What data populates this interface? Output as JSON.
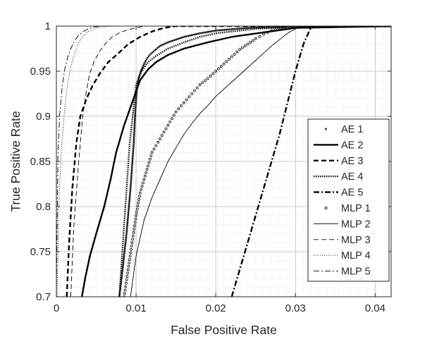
{
  "chart_data": {
    "type": "line",
    "xlabel": "False Positive Rate",
    "ylabel": "True Positive Rate",
    "xlim": [
      0,
      0.042
    ],
    "ylim": [
      0.7,
      1.0
    ],
    "grid": "on (major + minor dotted)",
    "legend_position": "right",
    "xticks": [
      0,
      0.01,
      0.02,
      0.03,
      0.04
    ],
    "xtick_labels": [
      "0",
      "0.01",
      "0.02",
      "0.03",
      "0.04"
    ],
    "yticks": [
      0.7,
      0.75,
      0.8,
      0.85,
      0.9,
      0.95,
      1.0
    ],
    "ytick_labels": [
      "0.7",
      "0.75",
      "0.8",
      "0.85",
      "0.9",
      "0.95",
      "1"
    ],
    "series": [
      {
        "name": "AE 1",
        "style": "x-marker",
        "color": "#000000",
        "x": [
          0.0079,
          0.0083,
          0.0088,
          0.0093,
          0.0097,
          0.0099,
          0.0101,
          0.0103,
          0.0106,
          0.011,
          0.0113,
          0.0117,
          0.0122,
          0.013,
          0.014,
          0.015,
          0.016,
          0.018,
          0.02,
          0.024,
          0.028,
          0.03,
          0.042
        ],
        "y": [
          0.7,
          0.73,
          0.77,
          0.82,
          0.87,
          0.905,
          0.93,
          0.942,
          0.95,
          0.958,
          0.963,
          0.968,
          0.972,
          0.978,
          0.982,
          0.985,
          0.988,
          0.992,
          0.995,
          0.998,
          0.999,
          1.0,
          1.0
        ]
      },
      {
        "name": "AE 2",
        "style": "solid-thick",
        "color": "#000000",
        "x": [
          0.0032,
          0.0036,
          0.0042,
          0.005,
          0.006,
          0.0068,
          0.0075,
          0.0085,
          0.0095,
          0.0105,
          0.0115,
          0.0125,
          0.014,
          0.016,
          0.019,
          0.022,
          0.026,
          0.03,
          0.042
        ],
        "y": [
          0.7,
          0.72,
          0.745,
          0.77,
          0.8,
          0.83,
          0.86,
          0.89,
          0.915,
          0.94,
          0.952,
          0.96,
          0.968,
          0.975,
          0.982,
          0.988,
          0.993,
          0.998,
          1.0
        ]
      },
      {
        "name": "AE 3",
        "style": "dashed-thick",
        "color": "#000000",
        "x": [
          0.0013,
          0.0016,
          0.002,
          0.0025,
          0.003,
          0.0038,
          0.0046,
          0.0055,
          0.0065,
          0.0078,
          0.009,
          0.0105,
          0.012,
          0.0135,
          0.015,
          0.042
        ],
        "y": [
          0.7,
          0.76,
          0.82,
          0.87,
          0.9,
          0.92,
          0.935,
          0.948,
          0.96,
          0.97,
          0.98,
          0.988,
          0.994,
          0.998,
          1.0,
          1.0
        ]
      },
      {
        "name": "AE 4",
        "style": "dotted-thick",
        "color": "#000000",
        "x": [
          0.0079,
          0.0085,
          0.0092,
          0.01,
          0.0107,
          0.0115,
          0.0125,
          0.014,
          0.016,
          0.018,
          0.02,
          0.023,
          0.025,
          0.028,
          0.03,
          0.031,
          0.042
        ],
        "y": [
          0.7,
          0.78,
          0.87,
          0.935,
          0.95,
          0.96,
          0.967,
          0.975,
          0.982,
          0.988,
          0.992,
          0.995,
          0.997,
          0.998,
          0.999,
          1.0,
          1.0
        ]
      },
      {
        "name": "AE 5",
        "style": "dashdot-thick",
        "color": "#000000",
        "x": [
          0.022,
          0.026,
          0.028,
          0.03,
          0.031,
          0.032,
          0.042
        ],
        "y": [
          0.7,
          0.82,
          0.88,
          0.95,
          0.98,
          1.0,
          1.0
        ]
      },
      {
        "name": "MLP 1",
        "style": "circle-marker",
        "color": "#000000",
        "x": [
          0.0085,
          0.009,
          0.0095,
          0.01,
          0.0105,
          0.011,
          0.0115,
          0.012,
          0.013,
          0.014,
          0.015,
          0.016,
          0.017,
          0.018,
          0.019,
          0.02,
          0.021,
          0.022,
          0.023,
          0.024,
          0.025,
          0.026,
          0.027,
          0.028,
          0.029,
          0.03,
          0.031,
          0.032,
          0.042
        ],
        "y": [
          0.7,
          0.73,
          0.76,
          0.79,
          0.815,
          0.83,
          0.845,
          0.86,
          0.875,
          0.89,
          0.905,
          0.915,
          0.925,
          0.935,
          0.942,
          0.95,
          0.958,
          0.966,
          0.974,
          0.98,
          0.986,
          0.991,
          0.995,
          0.997,
          0.998,
          0.999,
          0.999,
          1.0,
          1.0
        ]
      },
      {
        "name": "MLP 2",
        "style": "solid-thin",
        "color": "#000000",
        "x": [
          0.0093,
          0.01,
          0.011,
          0.012,
          0.013,
          0.014,
          0.015,
          0.016,
          0.017,
          0.018,
          0.019,
          0.02,
          0.021,
          0.022,
          0.023,
          0.024,
          0.025,
          0.026,
          0.027,
          0.028,
          0.029,
          0.03,
          0.031,
          0.042
        ],
        "y": [
          0.7,
          0.745,
          0.785,
          0.81,
          0.83,
          0.85,
          0.865,
          0.88,
          0.892,
          0.903,
          0.912,
          0.922,
          0.93,
          0.938,
          0.946,
          0.954,
          0.962,
          0.97,
          0.978,
          0.985,
          0.992,
          0.997,
          1.0,
          1.0
        ]
      },
      {
        "name": "MLP 3",
        "style": "dashed-thin",
        "color": "#000000",
        "x": [
          0.0018,
          0.0022,
          0.0028,
          0.0033,
          0.0038,
          0.0042,
          0.0048,
          0.0055,
          0.0062,
          0.007,
          0.008,
          0.009,
          0.01,
          0.011,
          0.042
        ],
        "y": [
          0.7,
          0.78,
          0.85,
          0.9,
          0.93,
          0.948,
          0.962,
          0.973,
          0.981,
          0.988,
          0.993,
          0.996,
          0.998,
          1.0,
          1.0
        ]
      },
      {
        "name": "MLP 4",
        "style": "dotted-thin",
        "color": "#000000",
        "x": [
          0.0001,
          0.0003,
          0.0006,
          0.001,
          0.0014,
          0.0018,
          0.0022,
          0.0026,
          0.003,
          0.0035,
          0.004,
          0.0045,
          0.005,
          0.006,
          0.007,
          0.008,
          0.009,
          0.042
        ],
        "y": [
          0.7,
          0.8,
          0.86,
          0.905,
          0.935,
          0.955,
          0.968,
          0.978,
          0.985,
          0.99,
          0.994,
          0.996,
          0.998,
          0.999,
          1.0,
          1.0,
          1.0,
          1.0
        ]
      },
      {
        "name": "MLP 5",
        "style": "dashdot-thin",
        "color": "#000000",
        "x": [
          0.0,
          0.0002,
          0.0004,
          0.0007,
          0.001,
          0.0014,
          0.0018,
          0.0023,
          0.0028,
          0.0034,
          0.004,
          0.0048,
          0.0056,
          0.0065,
          0.042
        ],
        "y": [
          0.7,
          0.86,
          0.9,
          0.93,
          0.95,
          0.965,
          0.975,
          0.984,
          0.99,
          0.994,
          0.997,
          0.999,
          1.0,
          1.0,
          1.0
        ]
      }
    ]
  }
}
